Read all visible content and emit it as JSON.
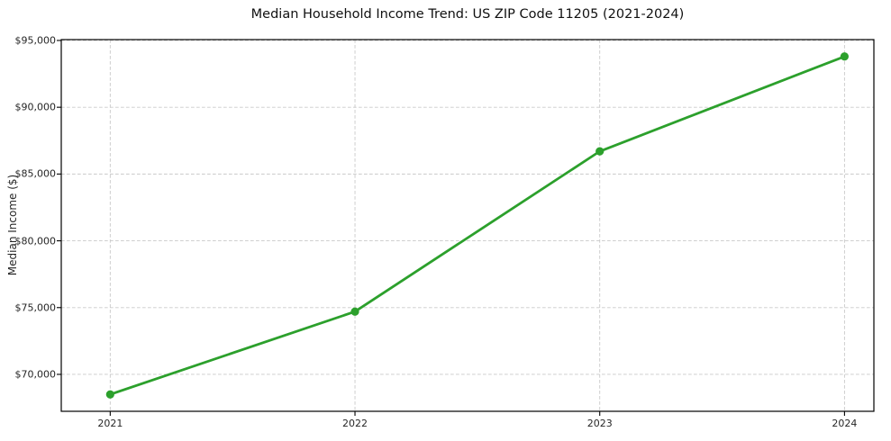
{
  "chart_data": {
    "type": "line",
    "title": "Median Household Income Trend: US ZIP Code 11205 (2021-2024)",
    "xlabel": "",
    "ylabel": "Median Income ($)",
    "x": [
      2021,
      2022,
      2023,
      2024
    ],
    "x_tick_labels": [
      "2021",
      "2022",
      "2023",
      "2024"
    ],
    "series": [
      {
        "name": "Median Household Income",
        "values": [
          68500,
          74700,
          86700,
          93800
        ]
      }
    ],
    "y_ticks": [
      70000,
      75000,
      80000,
      85000,
      90000,
      95000
    ],
    "y_tick_labels": [
      "$70,000",
      "$75,000",
      "$80,000",
      "$85,000",
      "$90,000",
      "$95,000"
    ],
    "xlim": [
      2020.8,
      2024.12
    ],
    "ylim": [
      67235,
      95065
    ],
    "grid": true,
    "grid_style": "dashed",
    "legend_position": "none",
    "colors": {
      "line": "#2ca02c",
      "marker": "#2ca02c",
      "grid": "#c9c9c9",
      "spine": "#000000",
      "text": "#262626",
      "background": "#ffffff"
    }
  }
}
